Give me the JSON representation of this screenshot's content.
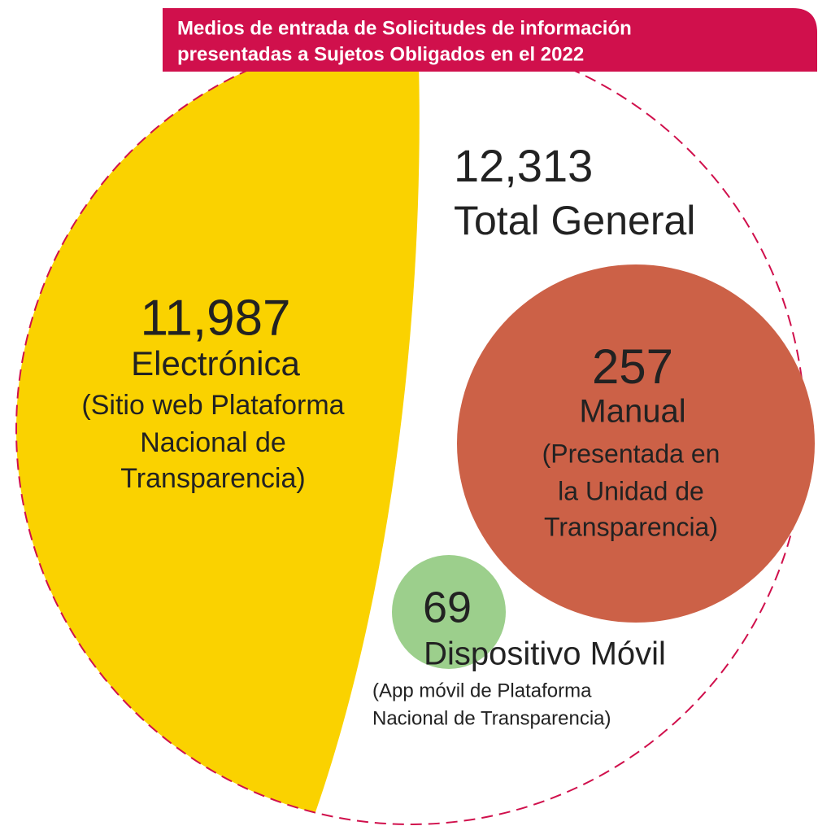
{
  "title": {
    "lines": [
      "Medios de entrada de Solicitudes de información",
      "presentadas a Sujetos Obligados en el 2022"
    ]
  },
  "total": {
    "value": "12,313",
    "label": "Total General"
  },
  "items": [
    {
      "value": "11,987",
      "label": "Electrónica",
      "note": [
        "(Sitio web Plataforma",
        "Nacional de",
        "Transparencia)"
      ]
    },
    {
      "value": "257",
      "label": "Manual",
      "note": [
        "(Presentada en",
        "la Unidad de",
        "Transparencia)"
      ]
    },
    {
      "value": "69",
      "label": "Dispositivo Móvil",
      "note": [
        "(App móvil de Plataforma",
        "Nacional de Transparencia)"
      ]
    }
  ]
}
